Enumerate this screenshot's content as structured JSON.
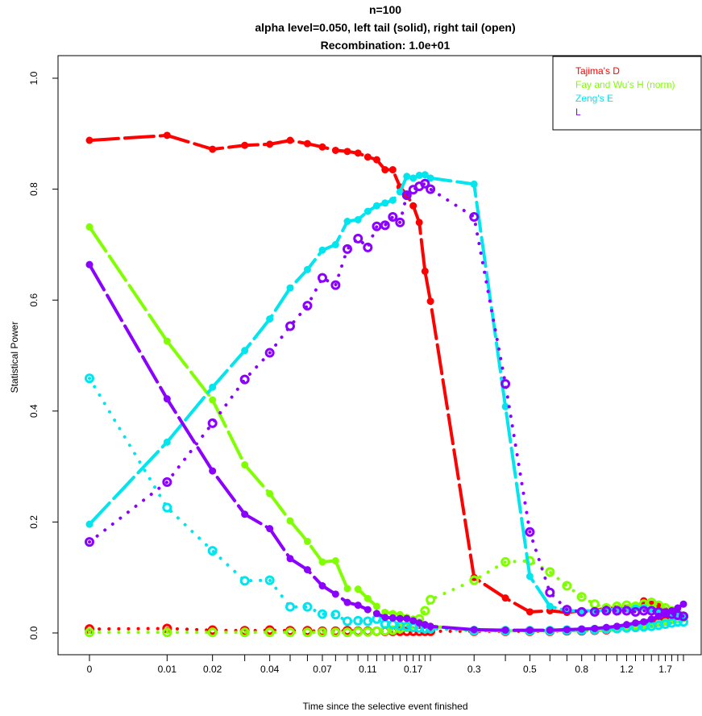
{
  "chart_data": {
    "type": "line",
    "title": [
      "n=100",
      "alpha level=0.050, left tail (solid), right tail (open)",
      "Recombination: 1.0e+01"
    ],
    "xlabel": "Time since the selective event finished",
    "ylabel": "Statistical Power",
    "x_scale": "log(x+0.01)",
    "ylim": [
      0,
      1.0
    ],
    "y_ticks": [
      "0.0",
      "0.2",
      "0.4",
      "0.6",
      "0.8",
      "1.0"
    ],
    "x_ticks": [
      {
        "value": 0,
        "label": "0"
      },
      {
        "value": 0.01,
        "label": "0.01"
      },
      {
        "value": 0.02,
        "label": "0.02"
      },
      {
        "value": 0.04,
        "label": "0.04"
      },
      {
        "value": 0.07,
        "label": "0.07"
      },
      {
        "value": 0.11,
        "label": "0.11"
      },
      {
        "value": 0.17,
        "label": "0.17"
      },
      {
        "value": 0.3,
        "label": "0.3"
      },
      {
        "value": 0.5,
        "label": "0.5"
      },
      {
        "value": 0.8,
        "label": "0.8"
      },
      {
        "value": 1.2,
        "label": "1.2"
      },
      {
        "value": 1.7,
        "label": "1.7"
      }
    ],
    "x_minor_ticks": [
      0.03,
      0.05,
      0.06,
      0.08,
      0.09,
      0.1,
      0.12,
      0.13,
      0.14,
      0.15,
      0.16,
      0.18,
      0.19,
      0.2,
      0.4,
      0.6,
      0.7,
      0.9,
      1.0,
      1.1,
      1.3,
      1.4,
      1.5,
      1.6,
      1.8,
      1.9,
      2.0
    ],
    "x": [
      0,
      0.01,
      0.02,
      0.03,
      0.04,
      0.05,
      0.06,
      0.07,
      0.08,
      0.09,
      0.1,
      0.11,
      0.12,
      0.13,
      0.14,
      0.15,
      0.16,
      0.17,
      0.18,
      0.19,
      0.2,
      0.3,
      0.4,
      0.5,
      0.6,
      0.7,
      0.8,
      0.9,
      1.0,
      1.1,
      1.2,
      1.3,
      1.4,
      1.5,
      1.6,
      1.7,
      1.8,
      1.9,
      2.0
    ],
    "legend": {
      "position": "top-right",
      "entries": [
        "Tajima's D",
        "Fay and Wu's H (norm)",
        "Zeng's E",
        "L"
      ]
    },
    "series": [
      {
        "name": "Tajima's D",
        "color": "#ff0000",
        "tail": "left",
        "values": [
          0.888,
          0.897,
          0.872,
          0.879,
          0.881,
          0.888,
          0.882,
          0.876,
          0.87,
          0.868,
          0.865,
          0.858,
          0.853,
          0.835,
          0.835,
          0.804,
          0.79,
          0.77,
          0.74,
          0.652,
          0.598,
          0.1,
          0.063,
          0.038,
          0.04,
          0.037,
          0.04,
          0.04,
          0.045,
          0.044,
          0.045,
          0.045,
          0.058,
          0.052,
          0.048,
          0.04,
          0.035,
          0.03,
          0.028
        ]
      },
      {
        "name": "Tajima's D",
        "color": "#ff0000",
        "tail": "right",
        "values": [
          0.007,
          0.008,
          0.005,
          0.004,
          0.005,
          0.004,
          0.004,
          0.003,
          0.003,
          0.004,
          0.003,
          0.003,
          0.003,
          0.003,
          0.003,
          0.003,
          0.003,
          0.003,
          0.003,
          0.003,
          0.003,
          0.003,
          0.003,
          0.003,
          0.003,
          0.004,
          0.004,
          0.005,
          0.006,
          0.008,
          0.01,
          0.012,
          0.015,
          0.018,
          0.02,
          0.022,
          0.025,
          0.028,
          0.03
        ]
      },
      {
        "name": "Fay and Wu's H (norm)",
        "color": "#80ff00",
        "tail": "left",
        "values": [
          0.732,
          0.526,
          0.42,
          0.303,
          0.251,
          0.202,
          0.165,
          0.128,
          0.13,
          0.08,
          0.079,
          0.062,
          0.048,
          0.037,
          0.035,
          0.033,
          0.028,
          0.025,
          0.02,
          0.015,
          0.012,
          0.005,
          0.004,
          0.004,
          0.004,
          0.004,
          0.004,
          0.004,
          0.005,
          0.006,
          0.008,
          0.01,
          0.012,
          0.015,
          0.018,
          0.02,
          0.022,
          0.024,
          0.026
        ]
      },
      {
        "name": "Fay and Wu's H (norm)",
        "color": "#80ff00",
        "tail": "right",
        "values": [
          0.001,
          0.001,
          0.001,
          0.001,
          0.001,
          0.001,
          0.001,
          0.001,
          0.001,
          0.001,
          0.002,
          0.002,
          0.003,
          0.004,
          0.005,
          0.008,
          0.01,
          0.015,
          0.025,
          0.04,
          0.06,
          0.095,
          0.128,
          0.13,
          0.11,
          0.085,
          0.065,
          0.052,
          0.045,
          0.048,
          0.05,
          0.048,
          0.052,
          0.055,
          0.05,
          0.045,
          0.04,
          0.035,
          0.03
        ]
      },
      {
        "name": "Zeng's E",
        "color": "#00e5ee",
        "tail": "left",
        "values": [
          0.196,
          0.344,
          0.443,
          0.509,
          0.566,
          0.622,
          0.655,
          0.69,
          0.7,
          0.742,
          0.745,
          0.76,
          0.77,
          0.775,
          0.78,
          0.795,
          0.823,
          0.82,
          0.825,
          0.826,
          0.82,
          0.809,
          0.408,
          0.102,
          0.048,
          0.04,
          0.04,
          0.04,
          0.042,
          0.042,
          0.043,
          0.045,
          0.046,
          0.043,
          0.04,
          0.038,
          0.035,
          0.032,
          0.03
        ]
      },
      {
        "name": "Zeng's E",
        "color": "#00e5ee",
        "tail": "right",
        "values": [
          0.459,
          0.226,
          0.148,
          0.094,
          0.095,
          0.047,
          0.047,
          0.034,
          0.033,
          0.021,
          0.022,
          0.021,
          0.025,
          0.016,
          0.015,
          0.013,
          0.012,
          0.01,
          0.009,
          0.008,
          0.008,
          0.004,
          0.004,
          0.004,
          0.004,
          0.005,
          0.005,
          0.006,
          0.007,
          0.008,
          0.009,
          0.01,
          0.011,
          0.012,
          0.014,
          0.016,
          0.018,
          0.02,
          0.02
        ]
      },
      {
        "name": "L",
        "color": "#8b00ff",
        "tail": "left",
        "values": [
          0.664,
          0.422,
          0.292,
          0.214,
          0.188,
          0.134,
          0.114,
          0.085,
          0.07,
          0.055,
          0.05,
          0.042,
          0.035,
          0.028,
          0.027,
          0.026,
          0.026,
          0.022,
          0.018,
          0.015,
          0.012,
          0.006,
          0.005,
          0.005,
          0.005,
          0.006,
          0.007,
          0.008,
          0.01,
          0.012,
          0.015,
          0.018,
          0.02,
          0.025,
          0.03,
          0.035,
          0.04,
          0.045,
          0.052
        ]
      },
      {
        "name": "L",
        "color": "#8b00ff",
        "tail": "right",
        "values": [
          0.164,
          0.272,
          0.378,
          0.457,
          0.505,
          0.553,
          0.59,
          0.64,
          0.627,
          0.692,
          0.711,
          0.695,
          0.733,
          0.735,
          0.75,
          0.74,
          0.789,
          0.799,
          0.805,
          0.81,
          0.8,
          0.75,
          0.449,
          0.182,
          0.073,
          0.042,
          0.038,
          0.038,
          0.04,
          0.04,
          0.04,
          0.038,
          0.04,
          0.04,
          0.038,
          0.036,
          0.034,
          0.032,
          0.03
        ]
      }
    ]
  }
}
